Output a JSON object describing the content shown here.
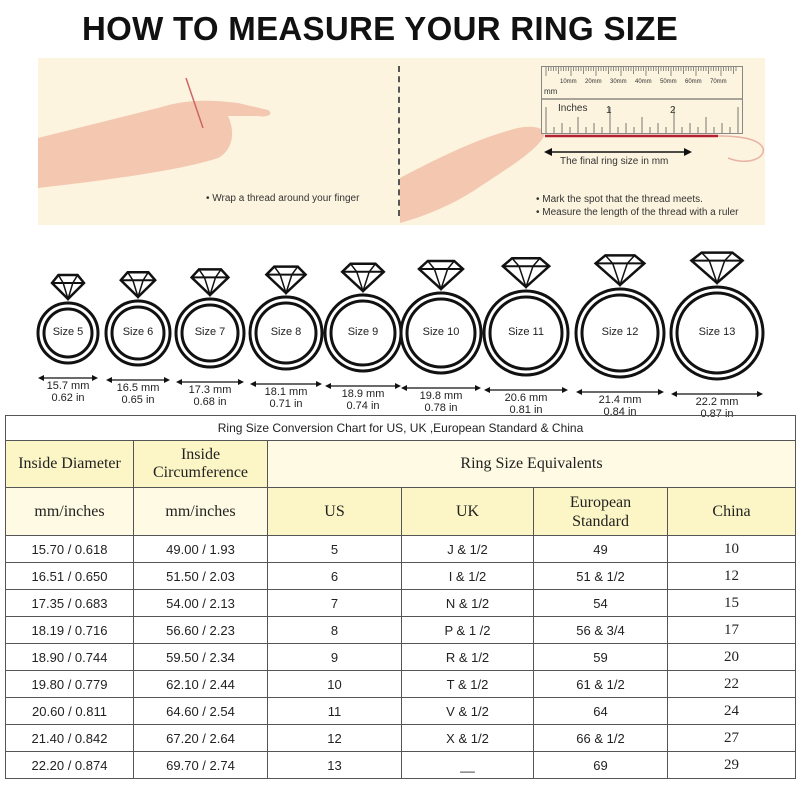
{
  "title": "HOW TO MEASURE YOUR RING SIZE",
  "illustration": {
    "step1": "• Wrap a thread around your finger",
    "step2": "• Mark the spot that the thread meets.",
    "step3": "• Measure the length of the thread with a ruler",
    "ruler_mm_label": "mm",
    "ruler_mm_ticks": [
      "10mm",
      "20mm",
      "30mm",
      "40mm",
      "50mm",
      "60mm",
      "70mm"
    ],
    "ruler_inches_label": "Inches",
    "ruler_inch_ticks": [
      "1",
      "2"
    ],
    "arrow_caption": "The final ring size in mm",
    "thread_color": "#b22234"
  },
  "rings": [
    {
      "label": "Size 5",
      "mm": "15.7 mm",
      "in": "0.62 in"
    },
    {
      "label": "Size 6",
      "mm": "16.5 mm",
      "in": "0.65 in"
    },
    {
      "label": "Size 7",
      "mm": "17.3 mm",
      "in": "0.68 in"
    },
    {
      "label": "Size 8",
      "mm": "18.1 mm",
      "in": "0.71 in"
    },
    {
      "label": "Size 9",
      "mm": "18.9 mm",
      "in": "0.74 in"
    },
    {
      "label": "Size 10",
      "mm": "19.8 mm",
      "in": "0.78 in"
    },
    {
      "label": "Size 11",
      "mm": "20.6 mm",
      "in": "0.81 in"
    },
    {
      "label": "Size 12",
      "mm": "21.4 mm",
      "in": "0.84 in"
    },
    {
      "label": "Size 13",
      "mm": "22.2 mm",
      "in": "0.87 in"
    }
  ],
  "table": {
    "title": "Ring Size Conversion Chart for US, UK ,European Standard & China",
    "h_diameter": "Inside Diameter",
    "h_circ_1": "Inside",
    "h_circ_2": "Circumference",
    "h_equiv": "Ring Size Equivalents",
    "h_unit1": "mm/inches",
    "h_unit2": "mm/inches",
    "h_us": "US",
    "h_uk": "UK",
    "h_eu_1": "European",
    "h_eu_2": "Standard",
    "h_cn": "China",
    "rows": [
      [
        "15.70 / 0.618",
        "49.00 / 1.93",
        "5",
        "J & 1/2",
        "49",
        "10"
      ],
      [
        "16.51 / 0.650",
        "51.50 / 2.03",
        "6",
        "I & 1/2",
        "51 & 1/2",
        "12"
      ],
      [
        "17.35 / 0.683",
        "54.00 / 2.13",
        "7",
        "N & 1/2",
        "54",
        "15"
      ],
      [
        "18.19 / 0.716",
        "56.60 / 2.23",
        "8",
        "P & 1 /2",
        "56 & 3/4",
        "17"
      ],
      [
        "18.90 / 0.744",
        "59.50 / 2.34",
        "9",
        "R & 1/2",
        "59",
        "20"
      ],
      [
        "19.80 / 0.779",
        "62.10 / 2.44",
        "10",
        "T & 1/2",
        "61 & 1/2",
        "22"
      ],
      [
        "20.60 / 0.811",
        "64.60 / 2.54",
        "11",
        "V & 1/2",
        "64",
        "24"
      ],
      [
        "21.40 / 0.842",
        "67.20 / 2.64",
        "12",
        "X & 1/2",
        "66 & 1/2",
        "27"
      ],
      [
        "22.20 / 0.874",
        "69.70 / 2.74",
        "13",
        "__",
        "69",
        "29"
      ]
    ],
    "header_yellow": "#fcf6c6",
    "header_light": "#fefae4"
  }
}
